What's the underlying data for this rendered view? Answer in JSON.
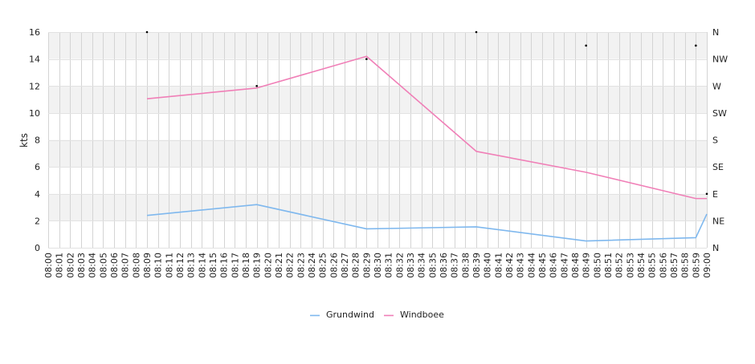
{
  "chart_data": {
    "type": "line",
    "title": "",
    "xlabel": "",
    "ylabel": "kts",
    "y2label": "",
    "ylim": [
      0,
      16
    ],
    "yticks": [
      0,
      2,
      4,
      6,
      8,
      10,
      12,
      14,
      16
    ],
    "y2ticks": [
      "N",
      "NE",
      "E",
      "SE",
      "S",
      "SW",
      "W",
      "NW",
      "N"
    ],
    "x": [
      "08:00",
      "08:01",
      "08:02",
      "08:03",
      "08:04",
      "08:05",
      "08:06",
      "08:07",
      "08:08",
      "08:09",
      "08:10",
      "08:11",
      "08:12",
      "08:13",
      "08:14",
      "08:15",
      "08:16",
      "08:17",
      "08:18",
      "08:19",
      "08:20",
      "08:21",
      "08:22",
      "08:23",
      "08:24",
      "08:25",
      "08:26",
      "08:27",
      "08:28",
      "08:29",
      "08:30",
      "08:31",
      "08:32",
      "08:33",
      "08:34",
      "08:35",
      "08:36",
      "08:37",
      "08:38",
      "08:39",
      "08:40",
      "08:41",
      "08:42",
      "08:43",
      "08:44",
      "08:45",
      "08:46",
      "08:47",
      "08:48",
      "08:49",
      "08:50",
      "08:51",
      "08:52",
      "08:53",
      "08:54",
      "08:55",
      "08:56",
      "08:57",
      "08:58",
      "08:59",
      "09:00"
    ],
    "grid": true,
    "legend_position": "bottom-center",
    "series": [
      {
        "name": "Grundwind",
        "color": "#7fb8ee",
        "points": [
          {
            "x": "08:09",
            "y": 2.4
          },
          {
            "x": "08:19",
            "y": 3.2
          },
          {
            "x": "08:29",
            "y": 1.4
          },
          {
            "x": "08:39",
            "y": 1.55
          },
          {
            "x": "08:49",
            "y": 0.5
          },
          {
            "x": "08:59",
            "y": 0.75
          },
          {
            "x": "09:00",
            "y": 2.5
          }
        ]
      },
      {
        "name": "Windboee",
        "color": "#f07fb7",
        "points": [
          {
            "x": "08:09",
            "y": 11.05
          },
          {
            "x": "08:19",
            "y": 11.85
          },
          {
            "x": "08:29",
            "y": 14.2
          },
          {
            "x": "08:39",
            "y": 7.15
          },
          {
            "x": "08:49",
            "y": 5.6
          },
          {
            "x": "08:59",
            "y": 3.65
          },
          {
            "x": "09:00",
            "y": 3.65
          }
        ]
      }
    ],
    "direction_markers": [
      {
        "x": "08:09",
        "y": 16
      },
      {
        "x": "08:19",
        "y": 12
      },
      {
        "x": "08:29",
        "y": 14
      },
      {
        "x": "08:39",
        "y": 16
      },
      {
        "x": "08:49",
        "y": 15
      },
      {
        "x": "08:59",
        "y": 15
      },
      {
        "x": "09:00",
        "y": 4
      }
    ],
    "colors": {
      "band": "#f2f2f2",
      "grid_minor": "#d4d4d4",
      "grid_major": "#e2e2e2",
      "axis_text": "#222222",
      "marker": "#000000"
    }
  }
}
